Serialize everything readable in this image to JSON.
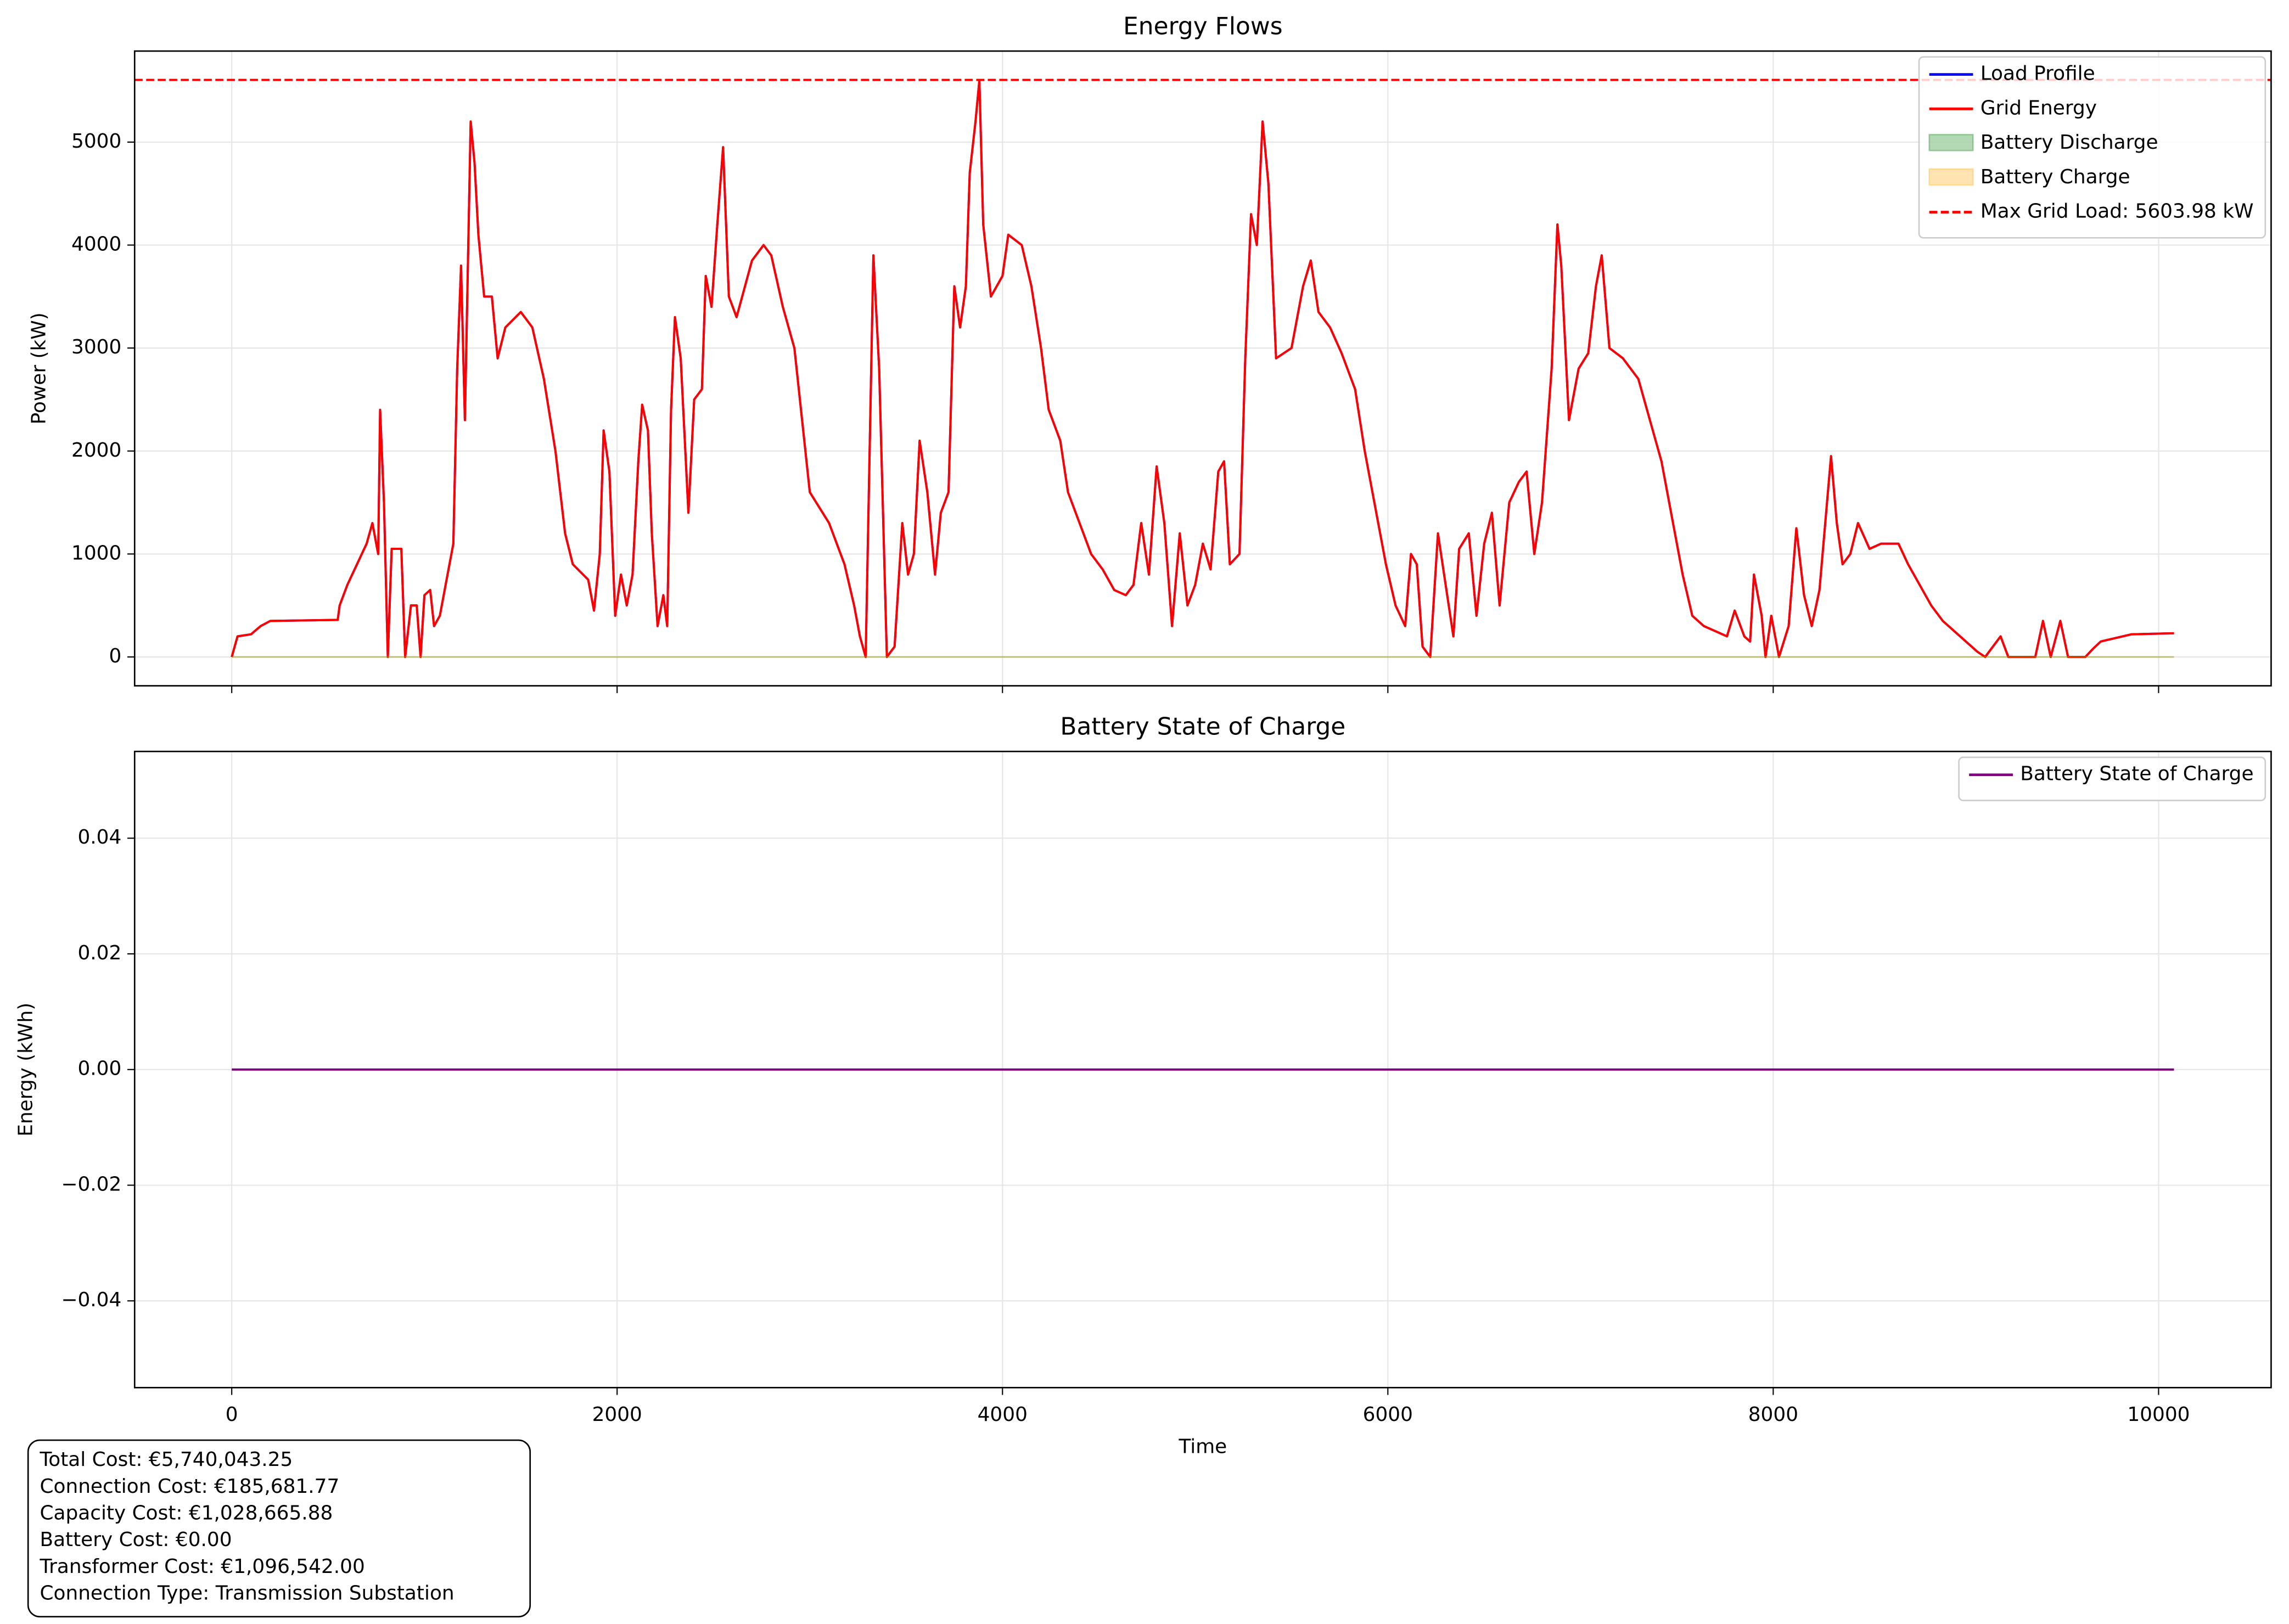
{
  "chart_data": [
    {
      "type": "line",
      "title": "Energy Flows",
      "y_label": "Power (kW)",
      "x": [
        0,
        30,
        100,
        150,
        200,
        550,
        560,
        600,
        650,
        700,
        730,
        760,
        770,
        790,
        810,
        830,
        880,
        900,
        930,
        960,
        980,
        1000,
        1030,
        1050,
        1080,
        1120,
        1150,
        1170,
        1190,
        1210,
        1240,
        1260,
        1280,
        1310,
        1350,
        1380,
        1420,
        1500,
        1560,
        1620,
        1680,
        1730,
        1770,
        1850,
        1880,
        1910,
        1930,
        1960,
        1990,
        2020,
        2050,
        2080,
        2110,
        2130,
        2160,
        2180,
        2210,
        2240,
        2260,
        2280,
        2300,
        2330,
        2370,
        2400,
        2440,
        2460,
        2490,
        2520,
        2550,
        2580,
        2620,
        2700,
        2760,
        2800,
        2860,
        2920,
        2960,
        3000,
        3100,
        3180,
        3230,
        3260,
        3290,
        3330,
        3360,
        3400,
        3440,
        3480,
        3510,
        3540,
        3570,
        3610,
        3650,
        3680,
        3720,
        3750,
        3780,
        3810,
        3830,
        3860,
        3880,
        3900,
        3940,
        4000,
        4030,
        4100,
        4150,
        4200,
        4240,
        4300,
        4340,
        4400,
        4460,
        4520,
        4580,
        4640,
        4680,
        4720,
        4760,
        4800,
        4840,
        4880,
        4920,
        4960,
        5000,
        5040,
        5080,
        5120,
        5150,
        5180,
        5230,
        5260,
        5290,
        5320,
        5350,
        5380,
        5420,
        5500,
        5560,
        5600,
        5640,
        5700,
        5760,
        5830,
        5880,
        5940,
        5990,
        6040,
        6090,
        6120,
        6150,
        6180,
        6220,
        6260,
        6300,
        6340,
        6370,
        6420,
        6460,
        6500,
        6540,
        6580,
        6630,
        6680,
        6720,
        6760,
        6800,
        6850,
        6880,
        6900,
        6940,
        6990,
        7040,
        7080,
        7110,
        7150,
        7220,
        7300,
        7360,
        7420,
        7480,
        7530,
        7580,
        7640,
        7700,
        7760,
        7800,
        7850,
        7880,
        7900,
        7940,
        7960,
        7990,
        8030,
        8080,
        8120,
        8160,
        8200,
        8240,
        8300,
        8330,
        8360,
        8400,
        8440,
        8500,
        8560,
        8650,
        8700,
        8760,
        8820,
        8880,
        8940,
        9000,
        9060,
        9100,
        9180,
        9220,
        9360,
        9400,
        9440,
        9490,
        9530,
        9620,
        9660,
        9700,
        9860,
        10080
      ],
      "series": [
        {
          "name": "Load Profile",
          "color": "#0000ff",
          "values": [
            0,
            200,
            220,
            300,
            350,
            360,
            500,
            700,
            900,
            1100,
            1300,
            1000,
            2400,
            1500,
            0,
            1050,
            1050,
            0,
            500,
            500,
            0,
            600,
            650,
            300,
            400,
            800,
            1100,
            2800,
            3800,
            2300,
            5200,
            4800,
            4100,
            3500,
            3500,
            2900,
            3200,
            3350,
            3200,
            2700,
            2000,
            1200,
            900,
            750,
            450,
            1000,
            2200,
            1800,
            400,
            800,
            500,
            800,
            1900,
            2450,
            2200,
            1200,
            300,
            600,
            300,
            2400,
            3300,
            2900,
            1400,
            2500,
            2600,
            3700,
            3400,
            4200,
            4950,
            3500,
            3300,
            3850,
            4000,
            3900,
            3400,
            3000,
            2300,
            1600,
            1300,
            900,
            500,
            200,
            0,
            3900,
            2800,
            0,
            100,
            1300,
            800,
            1000,
            2100,
            1600,
            800,
            1400,
            1600,
            3600,
            3200,
            3600,
            4700,
            5200,
            5600,
            4200,
            3500,
            3700,
            4100,
            4000,
            3600,
            3000,
            2400,
            2100,
            1600,
            1300,
            1000,
            850,
            650,
            600,
            700,
            1300,
            800,
            1850,
            1300,
            300,
            1200,
            500,
            700,
            1100,
            850,
            1800,
            1900,
            900,
            1000,
            2900,
            4300,
            4000,
            5200,
            4600,
            2900,
            3000,
            3600,
            3850,
            3350,
            3200,
            2950,
            2600,
            2000,
            1400,
            900,
            500,
            300,
            1000,
            900,
            100,
            0,
            1200,
            700,
            200,
            1050,
            1200,
            400,
            1100,
            1400,
            500,
            1500,
            1700,
            1800,
            1000,
            1500,
            2800,
            4200,
            3800,
            2300,
            2800,
            2950,
            3600,
            3900,
            3000,
            2900,
            2700,
            2300,
            1900,
            1300,
            800,
            400,
            300,
            250,
            200,
            450,
            200,
            150,
            800,
            400,
            0,
            400,
            0,
            300,
            1250,
            600,
            300,
            650,
            1950,
            1300,
            900,
            1000,
            1300,
            1050,
            1100,
            1100,
            900,
            700,
            500,
            350,
            250,
            150,
            50,
            0,
            200,
            0,
            0,
            350,
            0,
            350,
            0,
            0,
            80,
            150,
            220,
            230
          ]
        },
        {
          "name": "Grid Energy",
          "color": "#ff0000",
          "values": [
            0,
            200,
            220,
            300,
            350,
            360,
            500,
            700,
            900,
            1100,
            1300,
            1000,
            2400,
            1500,
            0,
            1050,
            1050,
            0,
            500,
            500,
            0,
            600,
            650,
            300,
            400,
            800,
            1100,
            2800,
            3800,
            2300,
            5200,
            4800,
            4100,
            3500,
            3500,
            2900,
            3200,
            3350,
            3200,
            2700,
            2000,
            1200,
            900,
            750,
            450,
            1000,
            2200,
            1800,
            400,
            800,
            500,
            800,
            1900,
            2450,
            2200,
            1200,
            300,
            600,
            300,
            2400,
            3300,
            2900,
            1400,
            2500,
            2600,
            3700,
            3400,
            4200,
            4950,
            3500,
            3300,
            3850,
            4000,
            3900,
            3400,
            3000,
            2300,
            1600,
            1300,
            900,
            500,
            200,
            0,
            3900,
            2800,
            0,
            100,
            1300,
            800,
            1000,
            2100,
            1600,
            800,
            1400,
            1600,
            3600,
            3200,
            3600,
            4700,
            5200,
            5600,
            4200,
            3500,
            3700,
            4100,
            4000,
            3600,
            3000,
            2400,
            2100,
            1600,
            1300,
            1000,
            850,
            650,
            600,
            700,
            1300,
            800,
            1850,
            1300,
            300,
            1200,
            500,
            700,
            1100,
            850,
            1800,
            1900,
            900,
            1000,
            2900,
            4300,
            4000,
            5200,
            4600,
            2900,
            3000,
            3600,
            3850,
            3350,
            3200,
            2950,
            2600,
            2000,
            1400,
            900,
            500,
            300,
            1000,
            900,
            100,
            0,
            1200,
            700,
            200,
            1050,
            1200,
            400,
            1100,
            1400,
            500,
            1500,
            1700,
            1800,
            1000,
            1500,
            2800,
            4200,
            3800,
            2300,
            2800,
            2950,
            3600,
            3900,
            3000,
            2900,
            2700,
            2300,
            1900,
            1300,
            800,
            400,
            300,
            250,
            200,
            450,
            200,
            150,
            800,
            400,
            0,
            400,
            0,
            300,
            1250,
            600,
            300,
            650,
            1950,
            1300,
            900,
            1000,
            1300,
            1050,
            1100,
            1100,
            900,
            700,
            500,
            350,
            250,
            150,
            50,
            0,
            200,
            0,
            0,
            350,
            0,
            350,
            0,
            0,
            80,
            150,
            220,
            230
          ]
        },
        {
          "name": "Battery Discharge",
          "color": "#008000",
          "fill": true,
          "alpha": 0.3,
          "x": [
            0,
            10080
          ],
          "values": [
            0,
            0
          ]
        },
        {
          "name": "Battery Charge",
          "color": "#ffa500",
          "fill": true,
          "alpha": 0.3,
          "x": [
            0,
            10080
          ],
          "values": [
            0,
            0
          ]
        }
      ],
      "reference_line": {
        "name": "Max Grid Load: 5603.98 kW",
        "value": 5603.98,
        "color": "#ff0000",
        "dashed": true
      },
      "xlim": [
        -504,
        10584
      ],
      "xticks": [
        0,
        2000,
        4000,
        6000,
        8000,
        10000
      ],
      "show_xtick_labels": false,
      "ylim": [
        -280,
        5884
      ],
      "yticks": [
        0,
        1000,
        2000,
        3000,
        4000,
        5000
      ],
      "grid": true,
      "legend": "upper right"
    },
    {
      "type": "line",
      "title": "Battery State of Charge",
      "x_label": "Time",
      "y_label": "Energy (kWh)",
      "series": [
        {
          "name": "Battery State of Charge",
          "color": "#800080",
          "x": [
            0,
            10080
          ],
          "values": [
            0,
            0
          ]
        }
      ],
      "xlim": [
        -504,
        10584
      ],
      "xticks": [
        0,
        2000,
        4000,
        6000,
        8000,
        10000
      ],
      "ylim": [
        -0.055,
        0.055
      ],
      "yticks": [
        {
          "value": -0.04,
          "label": "−0.04"
        },
        {
          "value": -0.02,
          "label": "−0.02"
        },
        {
          "value": 0,
          "label": "0.00"
        },
        0.02,
        0.04
      ],
      "grid": true,
      "legend": "upper right"
    }
  ],
  "text_box": [
    "Total Cost: €5,740,043.25",
    "Connection Cost: €185,681.77",
    "Capacity Cost: €1,028,665.88",
    "Battery Cost: €0.00",
    "Transformer Cost: €1,096,542.00",
    "Connection Type: Transmission Substation"
  ]
}
